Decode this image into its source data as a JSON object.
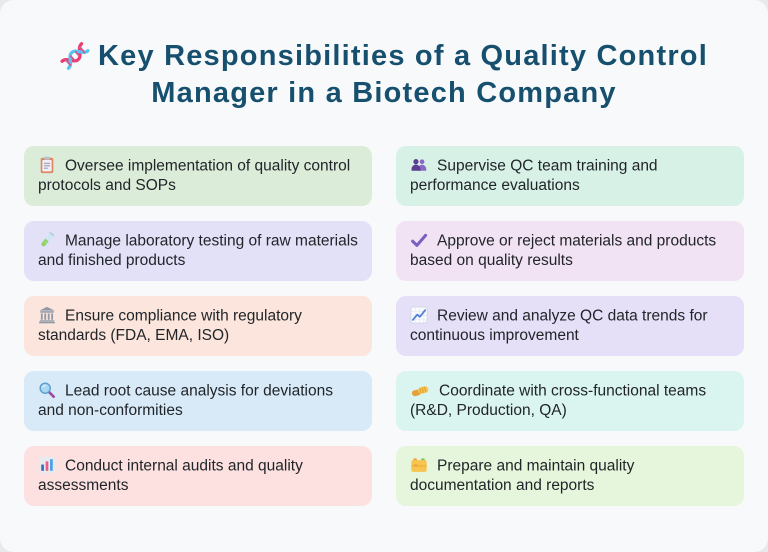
{
  "page": {
    "title": "Key Responsibilities of a Quality Control Manager in a Biotech Company",
    "title_icon": "dna-icon"
  },
  "colors": {
    "page_background": "#f8f9fb",
    "outer_background": "#e8e9eb",
    "title_text": "#17506e",
    "item_text": "#212529"
  },
  "items": [
    {
      "icon": "clipboard-icon",
      "label": "Oversee implementation of quality control protocols and SOPs",
      "bg": "#dbecd9"
    },
    {
      "icon": "two-people-icon",
      "label": "Supervise QC team training and performance evaluations",
      "bg": "#d8f1e7"
    },
    {
      "icon": "test-tube-icon",
      "label": "Manage laboratory testing of raw materials and finished products",
      "bg": "#e3e1f8"
    },
    {
      "icon": "check-mark-icon",
      "label": "Approve or reject materials and products based on quality results",
      "bg": "#f2e3f4"
    },
    {
      "icon": "classical-building-icon",
      "label": "Ensure compliance with regulatory standards (FDA, EMA, ISO)",
      "bg": "#fbe5dc"
    },
    {
      "icon": "chart-increasing-icon",
      "label": "Review and analyze QC data trends for continuous improvement",
      "bg": "#e6dff8"
    },
    {
      "icon": "magnifying-glass-icon",
      "label": "Lead root cause analysis for deviations and non-conformities",
      "bg": "#d8eaf7"
    },
    {
      "icon": "handshake-icon",
      "label": "Coordinate with cross-functional teams (R&D, Production, QA)",
      "bg": "#daf4f0"
    },
    {
      "icon": "bar-chart-icon",
      "label": "Conduct internal audits and quality assessments",
      "bg": "#fde1e1"
    },
    {
      "icon": "card-index-icon",
      "label": "Prepare and maintain quality documentation and reports",
      "bg": "#e6f6dc"
    }
  ]
}
